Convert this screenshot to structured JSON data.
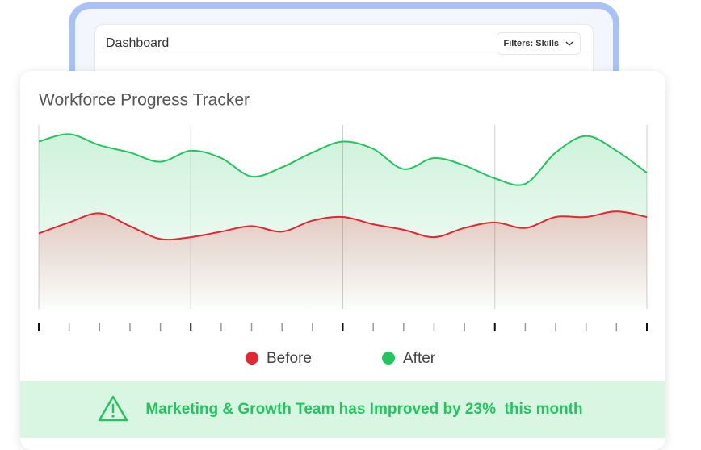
{
  "dashboard": {
    "title": "Dashboard",
    "filter": "Filters: Skills"
  },
  "chart_data": {
    "type": "area",
    "title": "Workforce Progress Tracker",
    "x": [
      0,
      1,
      2,
      3,
      4,
      5,
      6,
      7,
      8,
      9,
      10,
      11,
      12,
      13,
      14,
      15,
      16,
      17,
      18,
      19,
      20
    ],
    "xlim": [
      0,
      20
    ],
    "xticks": [
      0,
      1,
      2,
      3,
      4,
      5,
      6,
      7,
      8,
      9,
      10,
      11,
      12,
      13,
      14,
      15,
      16,
      17,
      18,
      19,
      20
    ],
    "major_xticks": [
      0,
      5,
      10,
      15,
      20
    ],
    "ylim": [
      0,
      100
    ],
    "series": [
      {
        "name": "Before",
        "color": "#e3262f",
        "values": [
          41,
          47,
          52,
          45,
          38,
          39,
          42,
          45,
          42,
          48,
          50,
          46,
          43,
          39,
          44,
          47,
          44,
          50,
          50,
          53,
          50
        ]
      },
      {
        "name": "After",
        "color": "#22c55e",
        "values": [
          91,
          95,
          89,
          85,
          80,
          86,
          82,
          72,
          77,
          85,
          91,
          87,
          76,
          82,
          78,
          71,
          68,
          85,
          94,
          86,
          74
        ]
      }
    ],
    "banner": "Marketing & Growth Team has Improved by 23%  this month"
  }
}
